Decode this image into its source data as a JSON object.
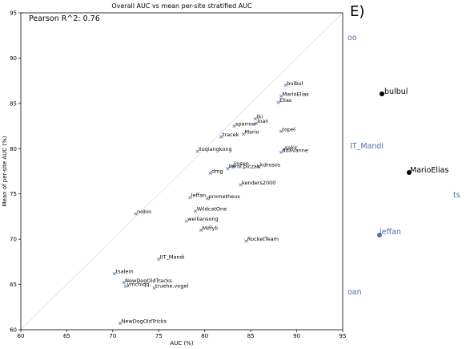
{
  "chart_data": {
    "type": "scatter",
    "title": "Overall AUC vs mean per-site stratified AUC",
    "xlabel": "AUC (%)",
    "ylabel": "Mean of per-site AUC (%)",
    "xlim": [
      60,
      95
    ],
    "ylim": [
      60,
      95
    ],
    "xticks": [
      60,
      65,
      70,
      75,
      80,
      85,
      90,
      95
    ],
    "yticks": [
      60,
      65,
      70,
      75,
      80,
      85,
      90,
      95
    ],
    "annotation": "Pearson R^2: 0.76",
    "diagonal": true,
    "marker_color": "#4c72b0",
    "points": [
      {
        "label": "bulbul",
        "x": 88.8,
        "y": 87.0
      },
      {
        "label": "MarioElias",
        "x": 88.3,
        "y": 85.8
      },
      {
        "label": "Elias",
        "x": 88.0,
        "y": 85.1
      },
      {
        "label": "tki",
        "x": 85.5,
        "y": 83.3
      },
      {
        "label": "loan",
        "x": 85.6,
        "y": 82.8
      },
      {
        "label": "sparrow",
        "x": 83.2,
        "y": 82.5
      },
      {
        "label": "topel",
        "x": 88.3,
        "y": 81.9
      },
      {
        "label": "Mario",
        "x": 84.2,
        "y": 81.6
      },
      {
        "label": "tracek",
        "x": 81.8,
        "y": 81.3
      },
      {
        "label": "sakir",
        "x": 88.6,
        "y": 79.9
      },
      {
        "label": "liuqiangkong",
        "x": 79.2,
        "y": 79.7
      },
      {
        "label": "ddavanne",
        "x": 88.3,
        "y": 79.6
      },
      {
        "label": "jinsen",
        "x": 83.0,
        "y": 78.1
      },
      {
        "label": "kdrosos",
        "x": 85.9,
        "y": 78.0
      },
      {
        "label": "karol.piczak",
        "x": 82.5,
        "y": 77.8
      },
      {
        "label": "dmg",
        "x": 80.6,
        "y": 77.3
      },
      {
        "label": "kenders2000",
        "x": 83.9,
        "y": 76.0
      },
      {
        "label": "leffan",
        "x": 78.4,
        "y": 74.6
      },
      {
        "label": "prometheus",
        "x": 80.3,
        "y": 74.5
      },
      {
        "label": "WildcatOne",
        "x": 79.0,
        "y": 73.1
      },
      {
        "label": "nobin",
        "x": 72.5,
        "y": 72.8
      },
      {
        "label": "weiliansong",
        "x": 78.0,
        "y": 72.0
      },
      {
        "label": "Miffyli",
        "x": 79.6,
        "y": 71.0
      },
      {
        "label": "RocketTeam",
        "x": 84.5,
        "y": 69.8
      },
      {
        "label": "IIT_Mandi",
        "x": 75.0,
        "y": 67.8
      },
      {
        "label": "tsalem",
        "x": 70.2,
        "y": 66.2
      },
      {
        "label": "NewDogOldTracks",
        "x": 71.2,
        "y": 65.2
      },
      {
        "label": "ymchiqq",
        "x": 71.4,
        "y": 64.8
      },
      {
        "label": "truehe.vogel",
        "x": 74.5,
        "y": 64.6
      },
      {
        "label": "NewDogOldTricks",
        "x": 70.8,
        "y": 60.7
      }
    ]
  },
  "side_panel": {
    "letter": "E)",
    "labels": [
      {
        "text": "oo",
        "color": "#4c72b0"
      },
      {
        "text": "bulbul",
        "color": "#000000"
      },
      {
        "text": "IT_Mandi",
        "color": "#4c72b0"
      },
      {
        "text": "MarioElias",
        "color": "#000000"
      },
      {
        "text": "ts",
        "color": "#4c72b0"
      },
      {
        "text": "leffan",
        "color": "#4c72b0"
      },
      {
        "text": "oan",
        "color": "#4c72b0"
      }
    ]
  }
}
